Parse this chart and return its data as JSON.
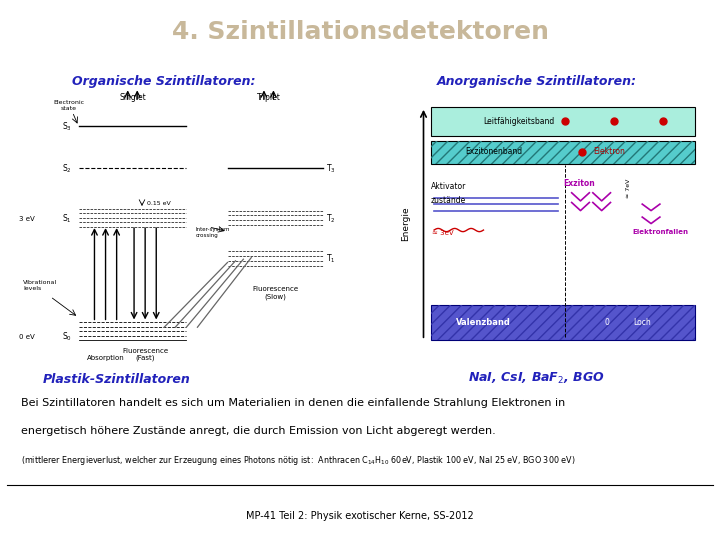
{
  "title": "4. Szintillationsdetektoren",
  "title_bg": "#0066ff",
  "title_color": "#c8b89a",
  "title_fontsize": 18,
  "left_heading": "Organische Szintillatoren:",
  "right_heading": "Anorganische Szintillatoren:",
  "left_caption": "Plastik-Szintillatoren",
  "right_caption": "NaI, CsI, BaF$_2$, BGO",
  "heading_color": "#2222bb",
  "caption_color": "#2222bb",
  "body_text_line1": "Bei Szintillatoren handelt es sich um Materialien in denen die einfallende Strahlung Elektronen in",
  "body_text_line2": "energetisch höhere Zustände anregt, die durch Emission von Licht abgeregt werden.",
  "body_text_line3": "(mittlerer Energieverlust, welcher zur Erzeugung eines Photons nötig ist:  Anthracen C$_{14}$H$_{10}$ 60eV, Plastik 100 eV, NaI 25 eV, BGO 300 eV)",
  "footer_text": "MP-41 Teil 2: Physik exotischer Kerne, SS-2012",
  "bg_color": "#ffffff"
}
